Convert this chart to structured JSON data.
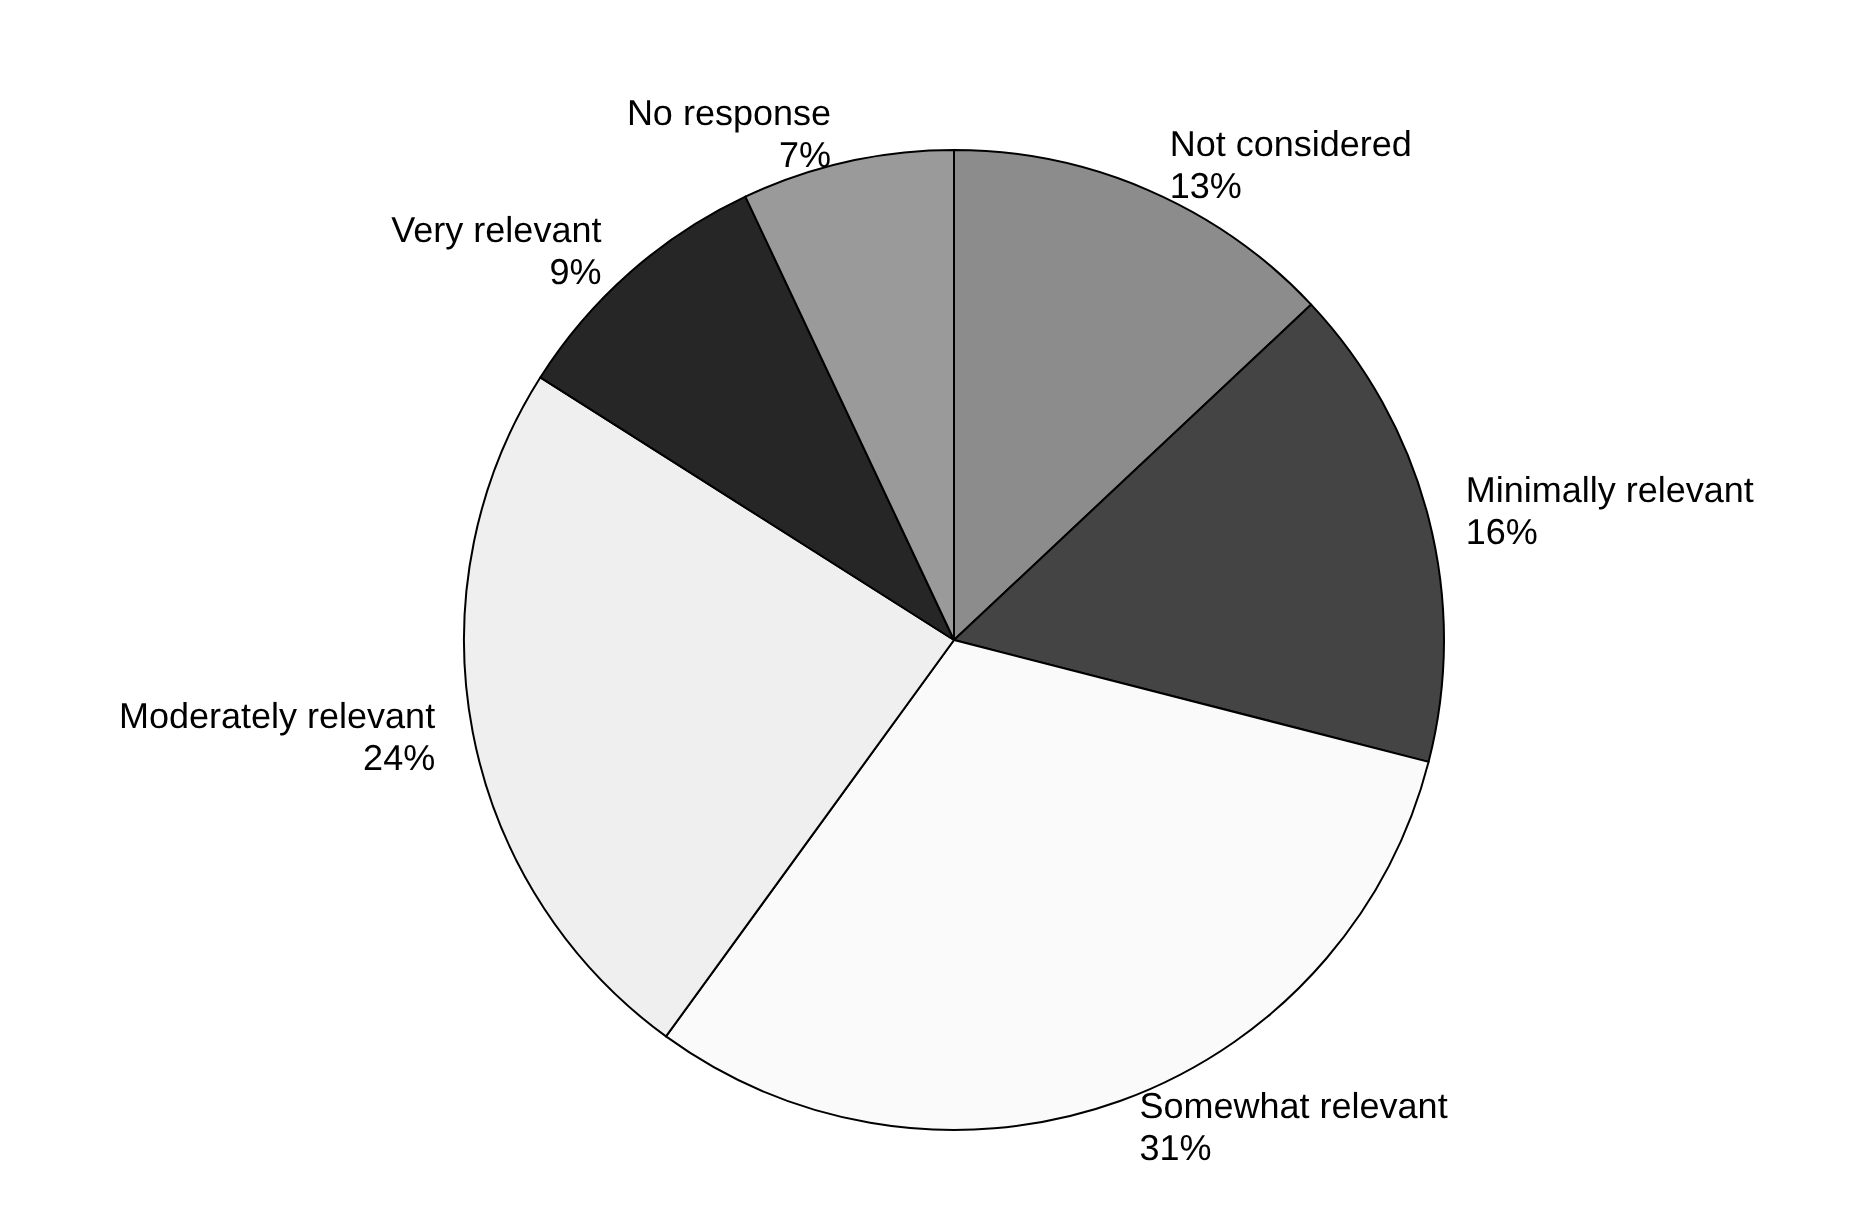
{
  "chart_data": {
    "type": "pie",
    "categories": [
      "Not considered",
      "Minimally relevant",
      "Somewhat relevant",
      "Moderately relevant",
      "Very relevant",
      "No response"
    ],
    "values": [
      13,
      16,
      31,
      24,
      9,
      7
    ],
    "value_labels": [
      "13%",
      "16%",
      "31%",
      "24%",
      "9%",
      "7%"
    ],
    "colors": [
      "#8c8c8c",
      "#444444",
      "#fafafa",
      "#efefef",
      "#262626",
      "#9a9a9a"
    ],
    "legend": false
  }
}
